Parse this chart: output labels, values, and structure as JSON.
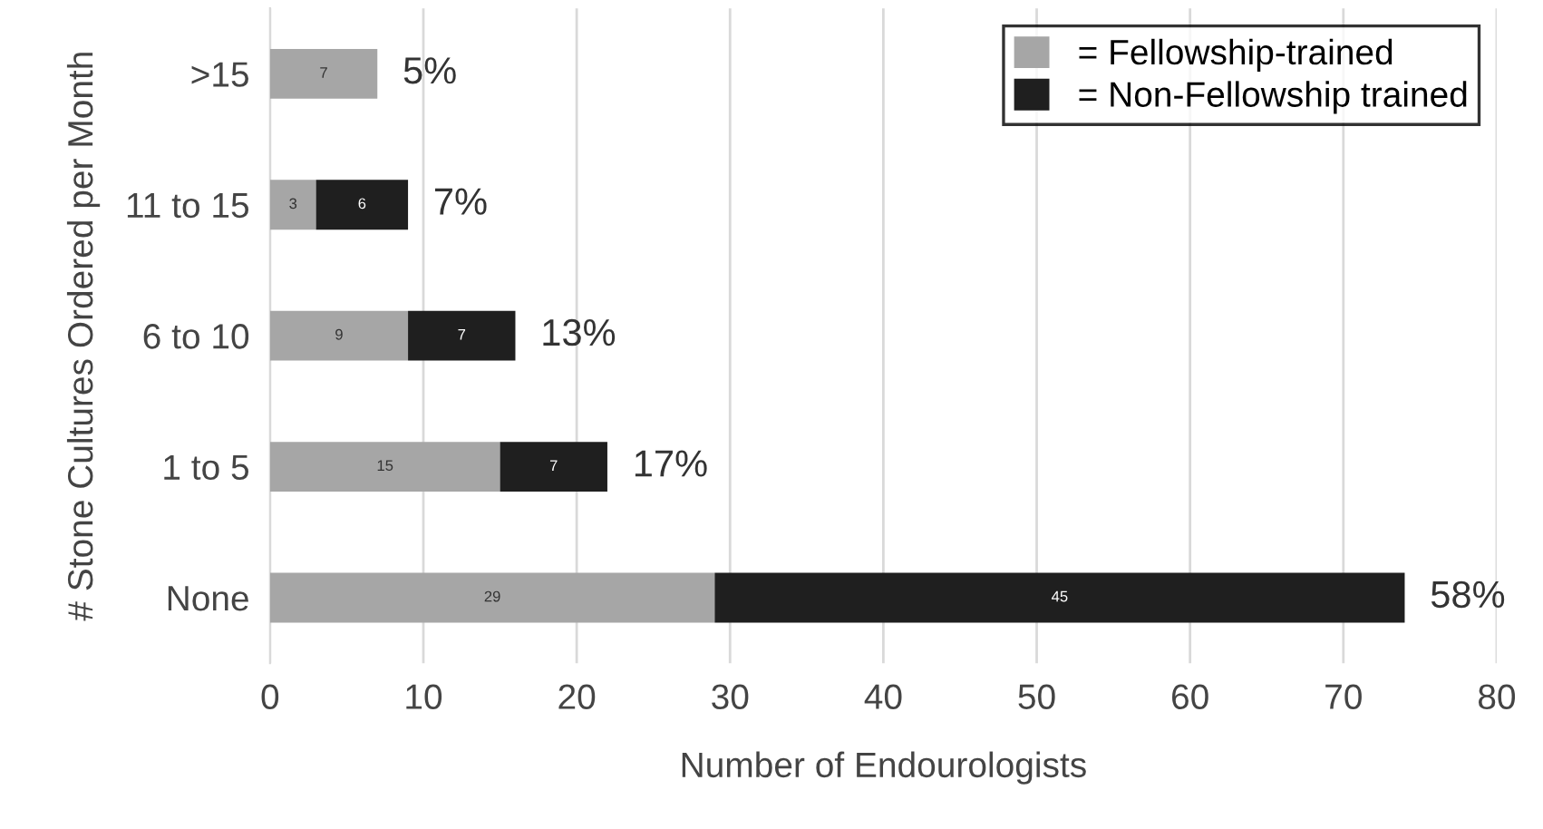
{
  "chart_data": {
    "type": "bar",
    "orientation": "horizontal",
    "stacked": true,
    "xlabel": "Number of Endourologists",
    "ylabel": "# Stone Cultures Ordered per Month",
    "categories": [
      ">15",
      "11 to 15",
      "6 to 10",
      "1 to 5",
      "None"
    ],
    "series": [
      {
        "name": "= Fellowship-trained",
        "color": "#a6a6a6",
        "values": [
          7,
          3,
          9,
          15,
          29
        ]
      },
      {
        "name": "= Non-Fellowship trained",
        "color": "#1f1f1f",
        "values": [
          null,
          6,
          7,
          7,
          45
        ]
      }
    ],
    "data_labels": true,
    "annotations": [
      {
        "text": "5%",
        "x": 7,
        "y": ">15"
      },
      {
        "text": "7%",
        "x": 9,
        "y": "11 to 15"
      },
      {
        "text": "13%",
        "x": 16,
        "y": "6 to 10"
      },
      {
        "text": "17%",
        "x": 22,
        "y": "1 to 5"
      },
      {
        "text": "58%",
        "x": 74,
        "y": "None"
      }
    ],
    "xlim": [
      0,
      80
    ],
    "xticks": [
      0,
      10,
      20,
      30,
      40,
      50,
      60,
      70,
      80
    ],
    "grid": "x",
    "legend": "top right"
  }
}
